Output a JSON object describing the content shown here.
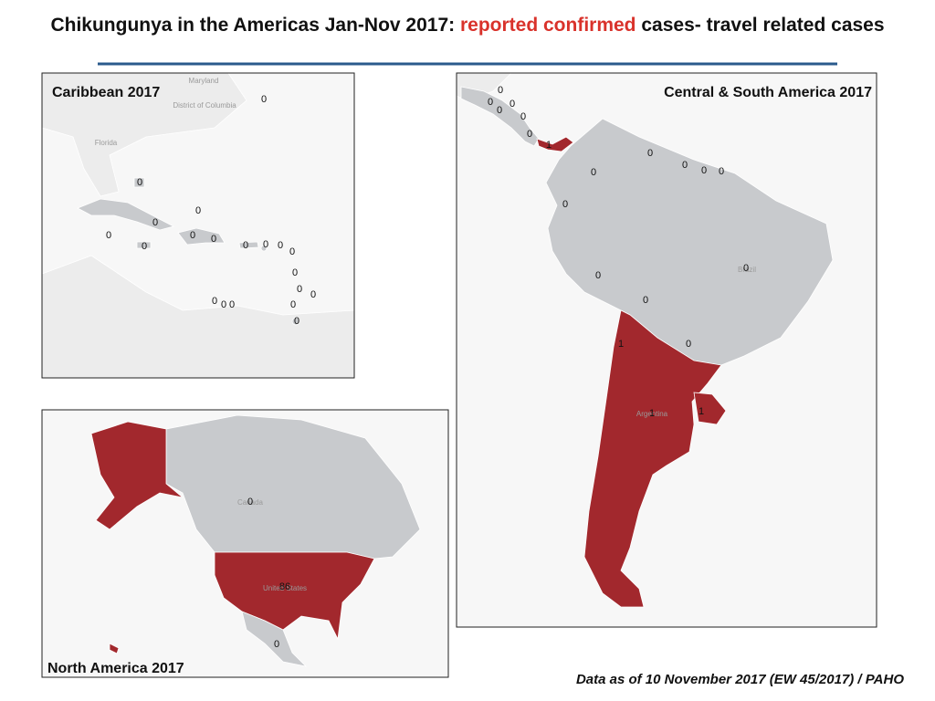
{
  "title": {
    "part1": "Chikungunya in the Americas Jan-Nov 2017: ",
    "highlight": "reported confirmed",
    "part2": " cases- travel related cases"
  },
  "panels": [
    {
      "title": "Caribbean 2017",
      "place_names": [
        "Maryland",
        "District of Columbia",
        "Florida"
      ],
      "counts": [
        0,
        0,
        0,
        0,
        0,
        0,
        0,
        0,
        0,
        0,
        0,
        0,
        0,
        0,
        0,
        0,
        0,
        0,
        0,
        0
      ]
    },
    {
      "title": "Central & South America  2017",
      "place_names": [
        "Brazil",
        "Argentina"
      ],
      "counts": [
        0,
        0,
        0,
        0,
        0,
        0,
        1,
        0,
        0,
        0,
        0,
        0,
        0,
        0,
        0,
        0,
        1,
        0,
        1,
        1
      ]
    },
    {
      "title": "North America  2017",
      "place_names": [
        "Canada",
        "United States"
      ],
      "counts": [
        0,
        86,
        0
      ]
    }
  ],
  "footnote": "Data as of 10 November 2017 (EW 45/2017) / PAHO"
}
